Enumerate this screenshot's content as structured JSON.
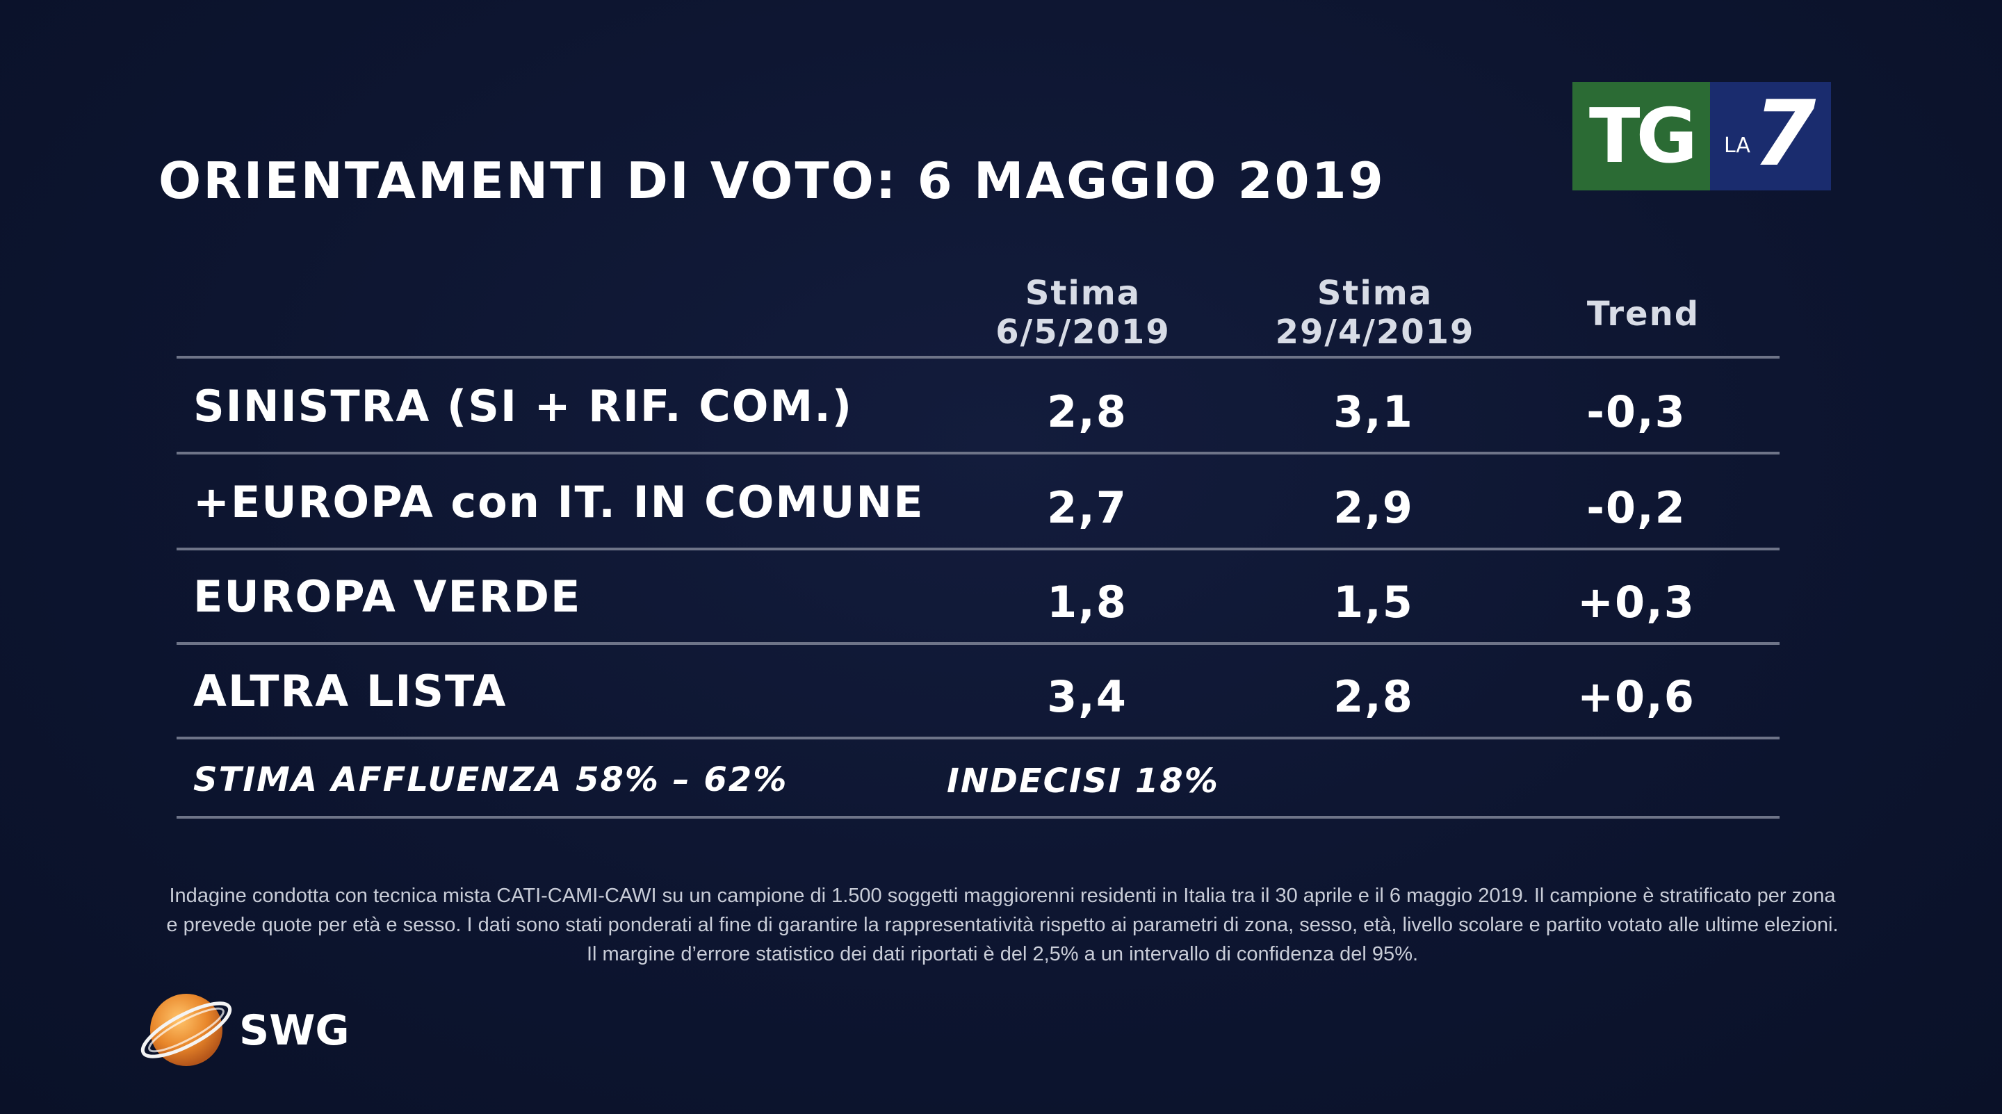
{
  "title": "ORIENTAMENTI DI VOTO: 6 MAGGIO 2019",
  "logo": {
    "tg": "TG",
    "la": "LA",
    "seven": "7",
    "colors": {
      "tg_bg": "#2b6b34",
      "la7_bg": "#1a2c6e"
    }
  },
  "chart_data": {
    "type": "table",
    "columns": [
      {
        "line1": "Stima",
        "line2": "6/5/2019"
      },
      {
        "line1": "Stima",
        "line2": "29/4/2019"
      },
      {
        "line1": "Trend",
        "line2": ""
      }
    ],
    "rows": [
      {
        "label": "SINISTRA (SI + RIF. COM.)",
        "stima_6_5": "2,8",
        "stima_29_4": "3,1",
        "trend": "-0,3"
      },
      {
        "label": "+EUROPA con IT. IN COMUNE",
        "stima_6_5": "2,7",
        "stima_29_4": "2,9",
        "trend": "-0,2"
      },
      {
        "label": "EUROPA VERDE",
        "stima_6_5": "1,8",
        "stima_29_4": "1,5",
        "trend": "+0,3"
      },
      {
        "label": "ALTRA LISTA",
        "stima_6_5": "3,4",
        "stima_29_4": "2,8",
        "trend": "+0,6"
      }
    ],
    "footer": {
      "affluenza": "STIMA AFFLUENZA  58% – 62%",
      "indecisi": "INDECISI  18%"
    }
  },
  "note": "Indagine condotta con tecnica mista CATI-CAMI-CAWI su un campione di 1.500 soggetti maggiorenni residenti in Italia tra il 30 aprile e il 6 maggio 2019. Il campione è stratificato per zona e prevede quote per età e sesso. I dati sono stati ponderati al fine di garantire la rappresentatività rispetto ai parametri di zona, sesso, età, livello scolare e partito votato alle ultime elezioni. Il margine d’errore statistico dei dati riportati è del 2,5% a un intervallo di confidenza del 95%.",
  "source_logo": "SWG",
  "colors": {
    "background": "#0d1530",
    "rule": "#6e7488",
    "text": "#ffffff",
    "swg_orange": "#e8862a"
  }
}
